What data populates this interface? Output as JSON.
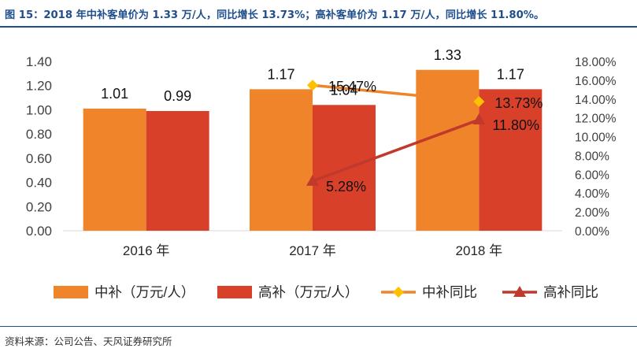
{
  "figure": {
    "title": "图 15：2018 年中补客单价为 1.33 万/人，同比增长 13.73%；高补客单价为 1.17 万/人，同比增长 11.80%。",
    "source": "资料来源：公司公告、天风证券研究所"
  },
  "chart_data": {
    "type": "bar",
    "categories": [
      "2016 年",
      "2017 年",
      "2018 年"
    ],
    "series": [
      {
        "name": "中补（万元/人）",
        "kind": "bar",
        "axis": "left",
        "color": "#f0842a",
        "values": [
          1.01,
          1.17,
          1.33
        ],
        "labels": [
          "1.01",
          "1.17",
          "1.33"
        ]
      },
      {
        "name": "高补（万元/人）",
        "kind": "bar",
        "axis": "left",
        "color": "#d9402a",
        "values": [
          0.99,
          1.04,
          1.17
        ],
        "labels": [
          "0.99",
          "1.04",
          "1.17"
        ]
      },
      {
        "name": "中补同比",
        "kind": "line",
        "marker": "diamond",
        "axis": "right",
        "color": "#f0842a",
        "marker_color": "#ffc000",
        "values": [
          null,
          15.47,
          13.73
        ],
        "labels": [
          null,
          "15.47%",
          "13.73%"
        ]
      },
      {
        "name": "高补同比",
        "kind": "line",
        "marker": "triangle",
        "axis": "right",
        "color": "#c0392b",
        "marker_color": "#c0392b",
        "values": [
          null,
          5.28,
          11.8
        ],
        "labels": [
          null,
          "5.28%",
          "11.80%"
        ]
      }
    ],
    "left_axis": {
      "ylim": [
        0,
        1.4
      ],
      "ticks": [
        "0.00",
        "0.20",
        "0.40",
        "0.60",
        "0.80",
        "1.00",
        "1.20",
        "1.40"
      ]
    },
    "right_axis": {
      "ylim": [
        0,
        18
      ],
      "ticks": [
        "0.00%",
        "2.00%",
        "4.00%",
        "6.00%",
        "8.00%",
        "10.00%",
        "12.00%",
        "14.00%",
        "16.00%",
        "18.00%"
      ]
    },
    "grid": false,
    "legend_position": "bottom"
  }
}
